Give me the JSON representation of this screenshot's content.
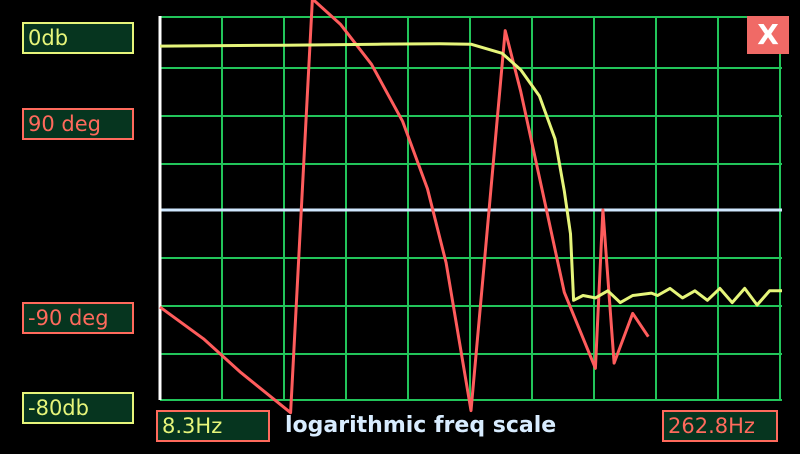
{
  "labels": {
    "gain_top": "0db",
    "phase_top": "90 deg",
    "phase_bottom": "-90 deg",
    "gain_bottom": "-80db",
    "freq_start": "8.3Hz",
    "freq_end": "262.8Hz",
    "scale_note": "logarithmic freq scale",
    "close": "X"
  },
  "colors": {
    "background": "#000000",
    "grid": "#22c55a",
    "axis": "#ffffff",
    "center_line": "#cfe8ff",
    "gain_trace": "#e6f57a",
    "phase_trace": "#ff5c5c",
    "box_fill": "#06351f",
    "close_button": "#f06a66"
  },
  "chart_data": {
    "type": "line",
    "x_scale": "log",
    "x_range": [
      "8.3Hz",
      "262.8Hz"
    ],
    "grid": true,
    "series": [
      {
        "name": "gain",
        "unit": "db",
        "y_range": [
          -80,
          0
        ],
        "points": [
          [
            0.0,
            -5.5
          ],
          [
            0.2,
            -5.3
          ],
          [
            0.35,
            -5.1
          ],
          [
            0.45,
            -5.0
          ],
          [
            0.5,
            -5.1
          ],
          [
            0.55,
            -7.0
          ],
          [
            0.58,
            -10.5
          ],
          [
            0.61,
            -16.0
          ],
          [
            0.635,
            -25.0
          ],
          [
            0.65,
            -36.0
          ],
          [
            0.66,
            -45.0
          ],
          [
            0.665,
            -59.0
          ],
          [
            0.68,
            -58.0
          ],
          [
            0.7,
            -58.5
          ],
          [
            0.72,
            -57.0
          ],
          [
            0.74,
            -59.5
          ],
          [
            0.76,
            -58.0
          ],
          [
            0.79,
            -57.5
          ],
          [
            0.8,
            -58.0
          ],
          [
            0.82,
            -56.5
          ],
          [
            0.84,
            -58.5
          ],
          [
            0.86,
            -57.0
          ],
          [
            0.88,
            -59.0
          ],
          [
            0.9,
            -56.5
          ],
          [
            0.92,
            -59.5
          ],
          [
            0.94,
            -56.5
          ],
          [
            0.96,
            -60.0
          ],
          [
            0.98,
            -57.0
          ],
          [
            1.0,
            -57.0
          ]
        ]
      },
      {
        "name": "phase",
        "unit": "deg",
        "y_range": [
          -180,
          180
        ],
        "points": [
          [
            0.0,
            -92
          ],
          [
            0.07,
            -122
          ],
          [
            0.13,
            -154
          ],
          [
            0.21,
            -192
          ],
          [
            0.245,
            200
          ],
          [
            0.29,
            176
          ],
          [
            0.34,
            138
          ],
          [
            0.39,
            84
          ],
          [
            0.43,
            20
          ],
          [
            0.46,
            -50
          ],
          [
            0.5,
            -190
          ],
          [
            0.555,
            170
          ],
          [
            0.58,
            112
          ],
          [
            0.62,
            4
          ],
          [
            0.65,
            -78
          ],
          [
            0.7,
            -150
          ],
          [
            0.712,
            0
          ],
          [
            0.73,
            -145
          ],
          [
            0.76,
            -98
          ],
          [
            0.785,
            -120
          ]
        ]
      }
    ]
  }
}
